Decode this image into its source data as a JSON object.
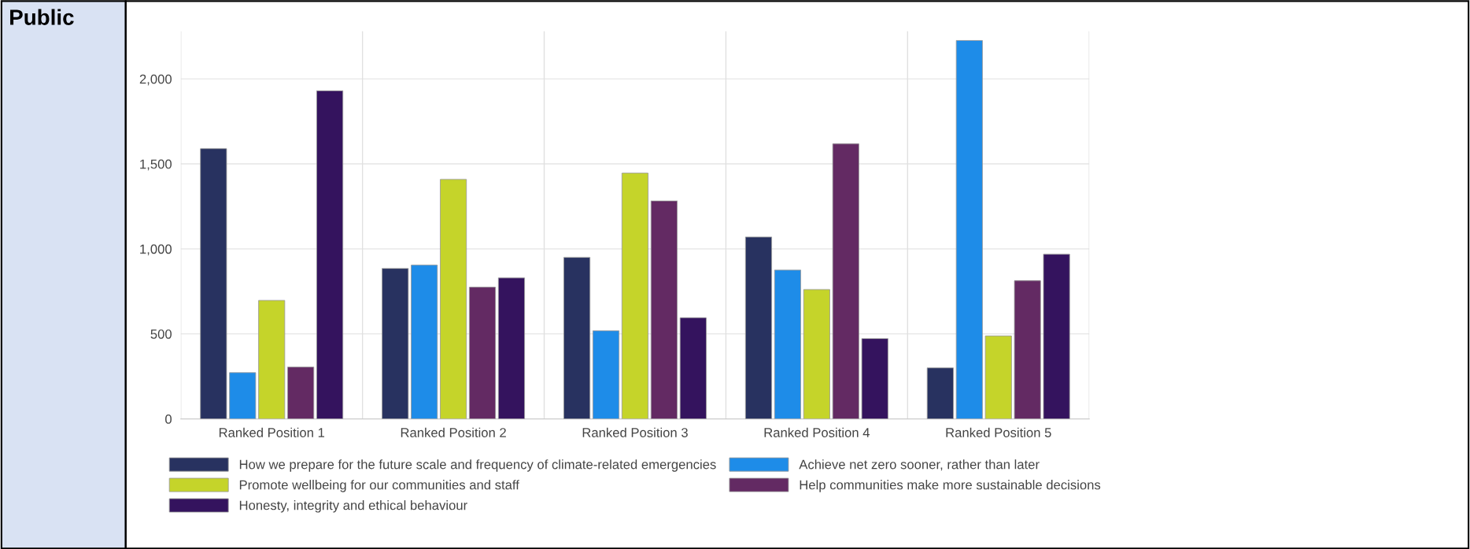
{
  "chart_data": {
    "type": "bar",
    "title": "Public",
    "categories": [
      "Ranked Position 1",
      "Ranked Position 2",
      "Ranked Position 3",
      "Ranked Position 4",
      "Ranked Position 5"
    ],
    "series": [
      {
        "name": "How we prepare for the future scale and frequency of climate-related emergencies",
        "color": "#283260",
        "values": [
          1590,
          885,
          950,
          1070,
          300
        ]
      },
      {
        "name": "Achieve net zero sooner, rather than later",
        "color": "#1e8ce8",
        "values": [
          272,
          905,
          518,
          876,
          2226
        ]
      },
      {
        "name": "Promote wellbeing for our communities and staff",
        "color": "#c5d42a",
        "values": [
          697,
          1409,
          1446,
          761,
          488
        ]
      },
      {
        "name": "Help communities make more sustainable decisions",
        "color": "#632a63",
        "values": [
          305,
          775,
          1282,
          1618,
          813
        ]
      },
      {
        "name": "Honesty, integrity and ethical behaviour",
        "color": "#34135e",
        "values": [
          1930,
          830,
          595,
          472,
          969
        ]
      }
    ],
    "ylim": [
      0,
      2280
    ],
    "yticks": [
      0,
      {
        "value": 500,
        "label": "500"
      },
      {
        "value": 1000,
        "label": "1,000"
      },
      {
        "value": 1500,
        "label": "1,500"
      },
      {
        "value": 2000,
        "label": "2,000"
      }
    ],
    "grid": true,
    "legend": "bottom"
  }
}
